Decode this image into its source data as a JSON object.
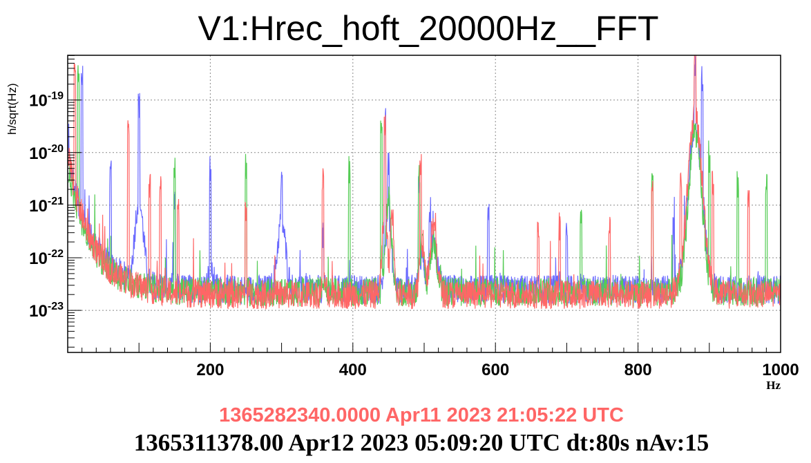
{
  "chart_data": {
    "type": "line",
    "title": "V1:Hrec_hoft_20000Hz__FFT",
    "xlabel": "Hz",
    "ylabel": "h/sqrt(Hz)",
    "xlim": [
      0,
      1000
    ],
    "ylim_log10": [
      -23.8,
      -18.15
    ],
    "yscale": "log",
    "grid": true,
    "x_ticks": [
      {
        "value": 200,
        "label": "200"
      },
      {
        "value": 400,
        "label": "400"
      },
      {
        "value": 600,
        "label": "600"
      },
      {
        "value": 800,
        "label": "800"
      },
      {
        "value": 1000,
        "label": "1000"
      }
    ],
    "y_ticks": [
      {
        "exp": -19,
        "base": "10",
        "sup": "-19"
      },
      {
        "exp": -20,
        "base": "10",
        "sup": "-20"
      },
      {
        "exp": -21,
        "base": "10",
        "sup": "-21"
      },
      {
        "exp": -22,
        "base": "10",
        "sup": "-22"
      },
      {
        "exp": -23,
        "base": "10",
        "sup": "-23"
      }
    ],
    "series": [
      {
        "color": "#6a6aff",
        "floor": -22.6,
        "low_rise": 2.5,
        "peaks": [
          [
            20,
            -18.6
          ],
          [
            60,
            -20.4
          ],
          [
            100,
            -19.1
          ],
          [
            150,
            -21.0
          ],
          [
            200,
            -20.3
          ],
          [
            300,
            -20.6
          ],
          [
            358,
            -21.6
          ],
          [
            445,
            -19.4
          ],
          [
            450,
            -20.2
          ],
          [
            493,
            -20.6
          ],
          [
            508,
            -21.1
          ],
          [
            590,
            -21.2
          ],
          [
            700,
            -21.4
          ],
          [
            850,
            -21.5
          ],
          [
            880,
            -18.3
          ],
          [
            890,
            -18.6
          ]
        ],
        "humps": [
          [
            100,
            -20.9,
            9
          ],
          [
            200,
            -22.3,
            7
          ],
          [
            300,
            -21.3,
            8
          ],
          [
            360,
            -22.6,
            4
          ],
          [
            450,
            -21.3,
            6
          ],
          [
            497,
            -21.9,
            5
          ],
          [
            513,
            -21.7,
            7
          ],
          [
            880,
            -19.5,
            14
          ]
        ]
      },
      {
        "color": "#55cc55",
        "floor": -22.65,
        "low_rise": 2.3,
        "peaks": [
          [
            15,
            -18.5
          ],
          [
            150,
            -20.3
          ],
          [
            250,
            -20.3
          ],
          [
            395,
            -20.4
          ],
          [
            440,
            -19.6
          ],
          [
            493,
            -20.3
          ],
          [
            720,
            -21.3
          ],
          [
            820,
            -20.5
          ],
          [
            900,
            -20.3
          ],
          [
            940,
            -20.6
          ],
          [
            980,
            -20.6
          ]
        ],
        "humps": [
          [
            360,
            -22.4,
            4
          ],
          [
            450,
            -20.9,
            6
          ],
          [
            497,
            -21.8,
            5
          ],
          [
            513,
            -21.7,
            7
          ],
          [
            880,
            -19.6,
            13
          ]
        ]
      },
      {
        "color": "#ff6666",
        "floor": -22.7,
        "low_rise": 2.6,
        "peaks": [
          [
            10,
            -18.3
          ],
          [
            85,
            -19.4
          ],
          [
            115,
            -20.6
          ],
          [
            130,
            -20.7
          ],
          [
            155,
            -21.1
          ],
          [
            250,
            -21.1
          ],
          [
            358,
            -20.5
          ],
          [
            445,
            -19.5
          ],
          [
            495,
            -20.2
          ],
          [
            660,
            -21.5
          ],
          [
            690,
            -21.4
          ],
          [
            760,
            -21.4
          ],
          [
            820,
            -20.6
          ],
          [
            860,
            -20.5
          ],
          [
            880,
            -18.2
          ],
          [
            905,
            -20.6
          ],
          [
            955,
            -20.8
          ]
        ],
        "humps": [
          [
            360,
            -22.5,
            4
          ],
          [
            445,
            -21.0,
            5
          ],
          [
            455,
            -21.1,
            4
          ],
          [
            497,
            -21.7,
            5
          ],
          [
            513,
            -21.4,
            7
          ],
          [
            880,
            -19.3,
            15
          ]
        ]
      }
    ],
    "timestamps": {
      "reference": "1365282340.0000 Apr11 2023 21:05:22 UTC",
      "current": "1365311378.00 Apr12 2023 05:09:20 UTC dt:80s nAv:15"
    }
  }
}
